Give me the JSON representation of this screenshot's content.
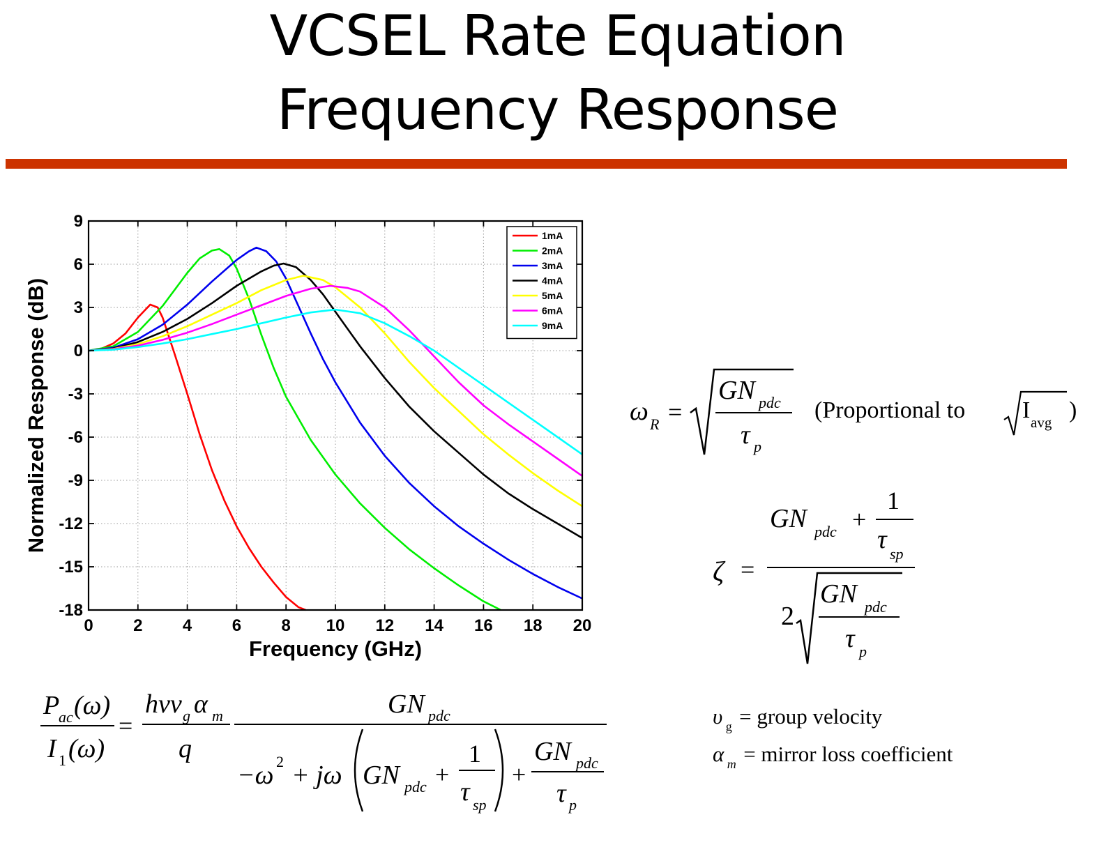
{
  "page": {
    "title_lines": [
      "VCSEL Rate Equation",
      "Frequency Response"
    ],
    "accent_color": "#cc3300"
  },
  "chart_data": {
    "type": "line",
    "xlabel": "Frequency (GHz)",
    "ylabel": "Normalized Response (dB)",
    "xlim": [
      0,
      20
    ],
    "ylim": [
      -18,
      9
    ],
    "xticks": [
      0,
      2,
      4,
      6,
      8,
      10,
      12,
      14,
      16,
      18,
      20
    ],
    "yticks": [
      -18,
      -15,
      -12,
      -9,
      -6,
      -3,
      0,
      3,
      6,
      9
    ],
    "grid": true,
    "legend_position": "top-right",
    "series": [
      {
        "name": "1mA",
        "color": "#ff0000",
        "x": [
          0,
          0.5,
          1,
          1.5,
          2,
          2.5,
          2.8,
          3,
          3.5,
          4,
          4.5,
          5,
          5.5,
          6,
          6.5,
          7,
          7.5,
          8,
          8.5,
          8.8
        ],
        "y": [
          0,
          0.12,
          0.5,
          1.2,
          2.3,
          3.2,
          3.0,
          2.3,
          -0.3,
          -3.0,
          -5.8,
          -8.3,
          -10.4,
          -12.2,
          -13.7,
          -15.0,
          -16.1,
          -17.1,
          -17.8,
          -18
        ]
      },
      {
        "name": "2mA",
        "color": "#00ee00",
        "x": [
          0,
          1,
          2,
          3,
          4,
          4.5,
          5,
          5.3,
          5.7,
          6,
          6.5,
          7,
          7.5,
          8,
          9,
          10,
          11,
          12,
          13,
          14,
          15,
          16,
          16.7
        ],
        "y": [
          0,
          0.3,
          1.3,
          3.1,
          5.4,
          6.4,
          6.95,
          7.05,
          6.6,
          5.7,
          3.6,
          1.1,
          -1.2,
          -3.2,
          -6.2,
          -8.6,
          -10.6,
          -12.3,
          -13.8,
          -15.1,
          -16.3,
          -17.4,
          -18
        ]
      },
      {
        "name": "3mA",
        "color": "#0000ee",
        "x": [
          0,
          1,
          2,
          3,
          4,
          5,
          6,
          6.5,
          6.8,
          7.2,
          7.6,
          8,
          8.5,
          9,
          9.5,
          10,
          11,
          12,
          13,
          14,
          15,
          16,
          17,
          18,
          19,
          20
        ],
        "y": [
          0,
          0.2,
          0.8,
          1.8,
          3.2,
          4.8,
          6.3,
          6.9,
          7.15,
          6.9,
          6.2,
          5.0,
          3.1,
          1.2,
          -0.6,
          -2.2,
          -5.0,
          -7.3,
          -9.2,
          -10.8,
          -12.2,
          -13.4,
          -14.5,
          -15.5,
          -16.4,
          -17.2
        ]
      },
      {
        "name": "4mA",
        "color": "#000000",
        "x": [
          0,
          1,
          2,
          3,
          4,
          5,
          6,
          7,
          7.5,
          7.9,
          8.4,
          9,
          9.5,
          10,
          11,
          12,
          13,
          14,
          15,
          16,
          17,
          18,
          19,
          20
        ],
        "y": [
          0,
          0.15,
          0.6,
          1.3,
          2.2,
          3.3,
          4.5,
          5.5,
          5.9,
          6.05,
          5.8,
          4.9,
          3.9,
          2.7,
          0.3,
          -1.9,
          -3.9,
          -5.6,
          -7.1,
          -8.6,
          -9.9,
          -11.0,
          -12.0,
          -13.0
        ]
      },
      {
        "name": "5mA",
        "color": "#ffff00",
        "x": [
          0,
          1,
          2,
          3,
          4,
          5,
          6,
          7,
          8,
          8.7,
          9.5,
          10,
          11,
          12,
          13,
          14,
          15,
          16,
          17,
          18,
          19,
          20
        ],
        "y": [
          0,
          0.12,
          0.45,
          1.0,
          1.7,
          2.5,
          3.3,
          4.2,
          4.9,
          5.2,
          4.9,
          4.4,
          3.0,
          1.2,
          -0.8,
          -2.6,
          -4.2,
          -5.8,
          -7.2,
          -8.5,
          -9.7,
          -10.8
        ]
      },
      {
        "name": "6mA",
        "color": "#ff00ff",
        "x": [
          0,
          1,
          2,
          3,
          4,
          5,
          6,
          7,
          8,
          9,
          9.8,
          10.5,
          11,
          12,
          13,
          14,
          15,
          16,
          17,
          18,
          19,
          20
        ],
        "y": [
          0,
          0.1,
          0.35,
          0.75,
          1.25,
          1.85,
          2.5,
          3.15,
          3.8,
          4.3,
          4.5,
          4.35,
          4.1,
          3.0,
          1.4,
          -0.4,
          -2.2,
          -3.8,
          -5.1,
          -6.3,
          -7.5,
          -8.7
        ]
      },
      {
        "name": "9mA",
        "color": "#00ffff",
        "x": [
          0,
          1,
          2,
          3,
          4,
          5,
          6,
          7,
          8,
          9,
          10,
          11,
          12,
          13,
          14,
          15,
          16,
          17,
          18,
          19,
          20
        ],
        "y": [
          0,
          0.07,
          0.25,
          0.5,
          0.8,
          1.15,
          1.5,
          1.9,
          2.3,
          2.65,
          2.85,
          2.6,
          1.9,
          1.0,
          0.0,
          -1.2,
          -2.4,
          -3.6,
          -4.8,
          -6.0,
          -7.2
        ]
      }
    ]
  },
  "equations": {
    "omega_r": {
      "lhs": "ω",
      "lhs_sub": "R",
      "eq": "=",
      "num": "GN",
      "num_sub": "pdc",
      "den": "τ",
      "den_sub": "p",
      "note_prefix": "(Proportional to",
      "note_radicand": "I",
      "note_radicand_sub": "avg",
      "note_suffix": ")"
    },
    "zeta": {
      "lhs": "ζ",
      "eq": "=",
      "num_term": "GN",
      "num_term_sub": "pdc",
      "plus": "+",
      "one": "1",
      "tau": "τ",
      "tau_sub": "sp",
      "two": "2",
      "rad_num": "GN",
      "rad_num_sub": "pdc",
      "rad_den": "τ",
      "rad_den_sub": "p"
    },
    "transfer": {
      "lhs_num": "P",
      "lhs_num_sub": "ac",
      "lhs_num_arg": "(ω)",
      "lhs_den": "I",
      "lhs_den_sub": "1",
      "lhs_den_arg": "(ω)",
      "eq": "=",
      "k_num": "hνv",
      "k_num_sub": "g",
      "k_num_tail": "α",
      "k_num_tail_sub": "m",
      "k_den": "q",
      "f_num": "GN",
      "f_num_sub": "pdc",
      "f_den_a": "−ω",
      "f_den_a_sup": "2",
      "f_den_b": "+ jω",
      "f_den_c": "GN",
      "f_den_c_sub": "pdc",
      "plus": "+",
      "one": "1",
      "tau": "τ",
      "tau_sub": "sp",
      "plus2": "+",
      "f_den_d": "GN",
      "f_den_d_sub": "pdc",
      "tau2": "τ",
      "tau2_sub": "p"
    },
    "definitions": [
      {
        "symbol": "υ",
        "sub": "g",
        "text": "= group velocity"
      },
      {
        "symbol": "α",
        "sub": "m",
        "text": "= mirror loss coefficient"
      }
    ]
  }
}
